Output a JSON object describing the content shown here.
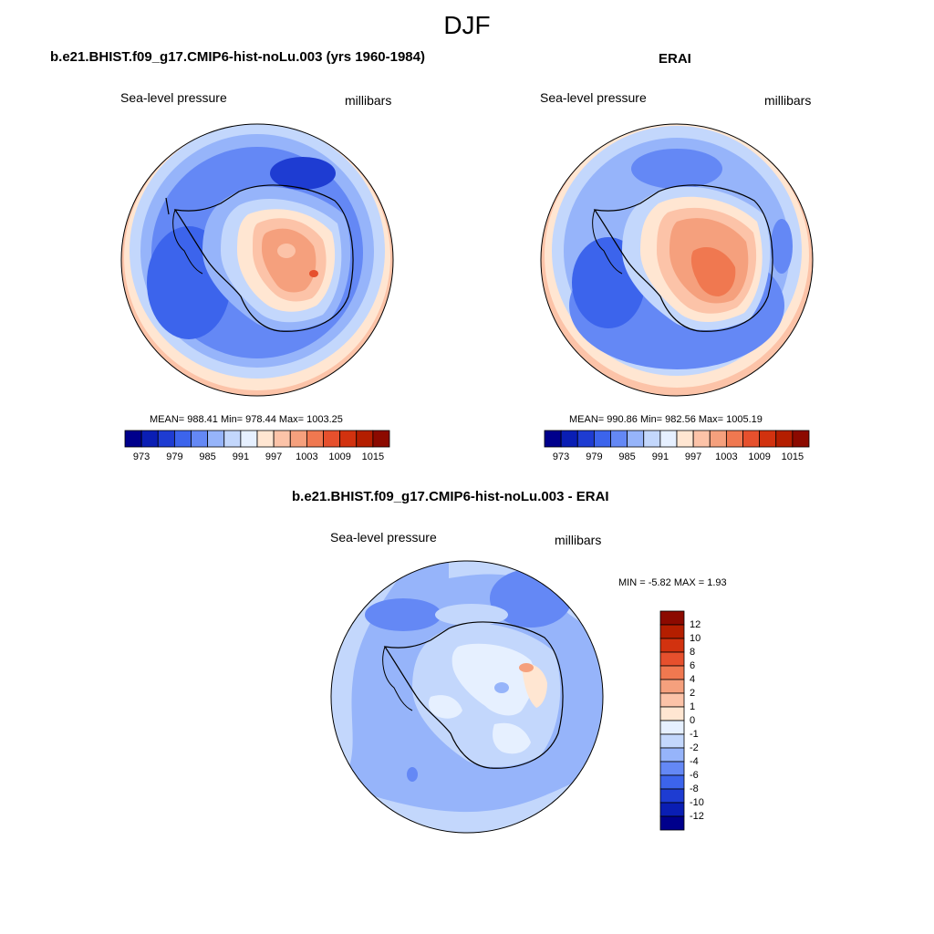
{
  "title": "DJF",
  "panels": [
    {
      "heading": "b.e21.BHIST.f09_g17.CMIP6-hist-noLu.003 (yrs 1960-1984)",
      "variable": "Sea-level pressure",
      "units": "millibars",
      "stats": "MEAN= 988.41   Min= 978.44   Max= 1003.25"
    },
    {
      "heading": "ERAI",
      "variable": "Sea-level pressure",
      "units": "millibars",
      "stats": "MEAN= 990.86   Min= 982.56   Max= 1005.19"
    },
    {
      "heading": "b.e21.BHIST.f09_g17.CMIP6-hist-noLu.003 - ERAI",
      "variable": "Sea-level pressure",
      "units": "millibars",
      "stats": "MIN =  -5.82 MAX =   1.93"
    }
  ],
  "colorbar_abs": {
    "labels": [
      "973",
      "979",
      "985",
      "991",
      "997",
      "1003",
      "1009",
      "1015"
    ],
    "colors": [
      "#00008c",
      "#0a1eb4",
      "#1e3cd2",
      "#3c64ec",
      "#6488f5",
      "#96b4fa",
      "#c3d7fc",
      "#e6f0ff",
      "#ffe6d2",
      "#fcc3a8",
      "#f5a07d",
      "#f07850",
      "#e6502d",
      "#d2320f",
      "#b41e00",
      "#8c0a00"
    ]
  },
  "colorbar_diff": {
    "labels": [
      "12",
      "10",
      "8",
      "6",
      "4",
      "2",
      "1",
      "0",
      "-1",
      "-2",
      "-4",
      "-6",
      "-8",
      "-10",
      "-12"
    ],
    "colors": [
      "#8c0a00",
      "#b41e00",
      "#d2320f",
      "#e6502d",
      "#f07850",
      "#f5a07d",
      "#fcc3a8",
      "#ffe6d2",
      "#e6f0ff",
      "#c3d7fc",
      "#96b4fa",
      "#6488f5",
      "#3c64ec",
      "#1e3cd2",
      "#0a1eb4",
      "#00008c"
    ]
  }
}
